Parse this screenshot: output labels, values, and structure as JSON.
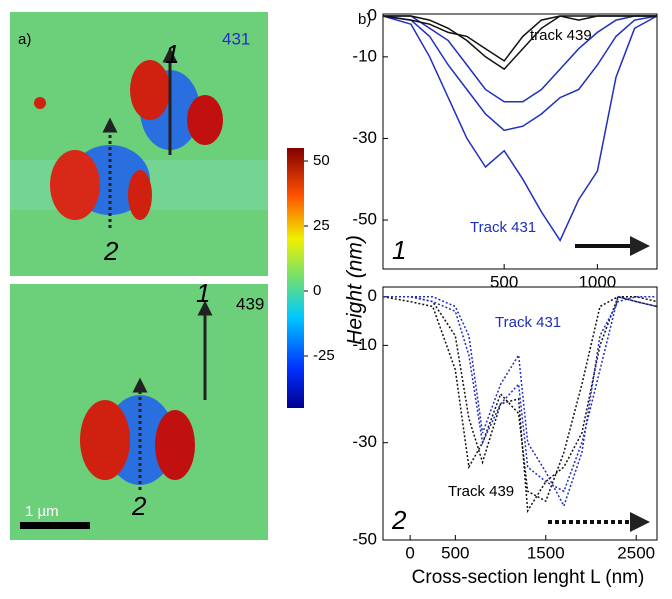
{
  "panel_a": {
    "label": "a)",
    "images": [
      {
        "label": "431",
        "arrows": [
          "1",
          "2"
        ]
      },
      {
        "label": "439",
        "arrows": [
          "1",
          "2"
        ]
      }
    ],
    "scale_bar": "1 µm",
    "colorbar": {
      "label": "Height (nm)",
      "lim": [
        -45,
        55
      ],
      "ticks": [
        50,
        25,
        0,
        -25
      ]
    }
  },
  "panel_b_label": "b)",
  "chart_data": [
    {
      "type": "line",
      "annotations": [
        "track 439",
        "Track 431",
        "1"
      ],
      "x": [
        -150,
        0,
        100,
        200,
        300,
        400,
        500,
        600,
        700,
        800,
        900,
        1000,
        1100,
        1200,
        1320
      ],
      "xlim": [
        -150,
        1320
      ],
      "xticks": [
        500,
        1000
      ],
      "ylim": [
        -62,
        0.5
      ],
      "yticks": [
        0,
        -10,
        -30,
        -50
      ],
      "series": [
        {
          "color": "#1f2fbf",
          "dashed": false,
          "values": [
            0,
            -2,
            -10,
            -20,
            -30,
            -37,
            -33,
            -40,
            -48,
            -55,
            -45,
            -38,
            -15,
            -3,
            0
          ]
        },
        {
          "color": "#1f2fbf",
          "dashed": false,
          "values": [
            0,
            -1,
            -5,
            -12,
            -18,
            -24,
            -28,
            -27,
            -24,
            -20,
            -18,
            -12,
            -5,
            -1,
            0
          ]
        },
        {
          "color": "#1f2fbf",
          "dashed": false,
          "values": [
            0,
            0,
            -3,
            -6,
            -12,
            -18,
            -21,
            -21,
            -18,
            -13,
            -8,
            -4,
            -1,
            0,
            0
          ]
        },
        {
          "color": "#111111",
          "dashed": false,
          "values": [
            0,
            0,
            -1,
            -3,
            -6,
            -10,
            -13,
            -8,
            -3,
            0,
            -1,
            0,
            0,
            0,
            0
          ]
        },
        {
          "color": "#111111",
          "dashed": false,
          "values": [
            0,
            -1,
            -2,
            -4,
            -5,
            -8,
            -11,
            -5,
            -1,
            0,
            0,
            0,
            0,
            0,
            0
          ]
        }
      ]
    },
    {
      "type": "line",
      "annotations": [
        "Track 431",
        "Track 439",
        "2"
      ],
      "xlabel": "Cross-section lenght L (nm)",
      "x": [
        -300,
        0,
        250,
        500,
        650,
        800,
        1000,
        1200,
        1300,
        1500,
        1700,
        1900,
        2100,
        2300,
        2500,
        2730
      ],
      "xlim": [
        -300,
        2730
      ],
      "xticks": [
        0,
        500,
        1500,
        2500
      ],
      "ylim": [
        -50,
        2
      ],
      "yticks": [
        0,
        -10,
        -30,
        -50
      ],
      "series": [
        {
          "color": "#111111",
          "dashed": true,
          "values": [
            0,
            0,
            -1,
            -8,
            -25,
            -34,
            -22,
            -21,
            -44,
            -38,
            -35,
            -28,
            -10,
            0,
            -1,
            -2
          ]
        },
        {
          "color": "#111111",
          "dashed": true,
          "values": [
            0,
            -1,
            -2,
            -15,
            -35,
            -30,
            -20,
            -24,
            -40,
            -42,
            -32,
            -18,
            -2,
            0,
            0,
            -1
          ]
        },
        {
          "color": "#1f2fbf",
          "dashed": true,
          "values": [
            0,
            0,
            -1,
            -3,
            -12,
            -30,
            -22,
            -18,
            -35,
            -38,
            -40,
            -30,
            -15,
            0,
            -1,
            -2
          ]
        },
        {
          "color": "#1f2fbf",
          "dashed": true,
          "values": [
            0,
            0,
            0,
            -2,
            -8,
            -28,
            -18,
            -12,
            -30,
            -36,
            -43,
            -32,
            -8,
            -1,
            0,
            0
          ]
        }
      ]
    }
  ]
}
